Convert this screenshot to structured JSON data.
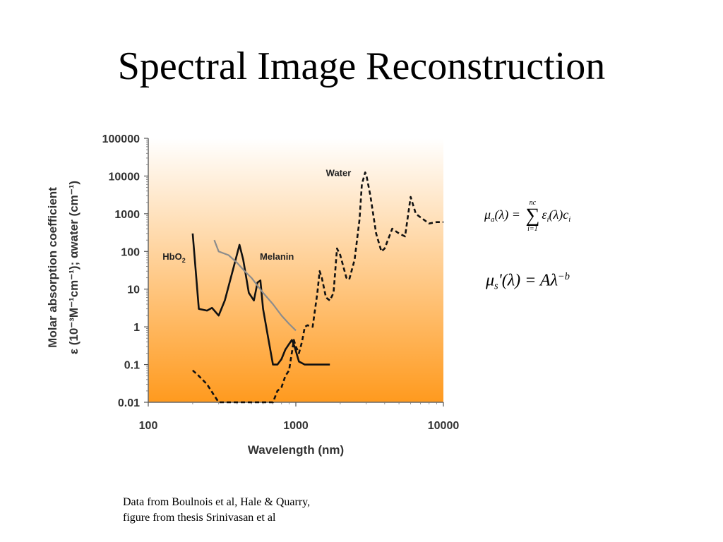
{
  "slide": {
    "title": "Spectral Image Reconstruction",
    "caption": [
      "Data from Boulnois et al, Hale & Quarry,",
      "figure from thesis Srinivasan et al"
    ]
  },
  "equations": {
    "mu_a": {
      "lhs": "μ",
      "lhs_sub": "a",
      "arg": "(λ) = ",
      "sum_top": "nc",
      "sum_sym": "∑",
      "sum_bottom": "i=1",
      "term": "ε",
      "term_sub": "i",
      "term_arg": "(λ)c",
      "term_end_sub": "i"
    },
    "mu_s": {
      "lhs": "μ",
      "lhs_sub": "s",
      "arg": "'(λ) = Aλ",
      "exp": "−b"
    }
  },
  "chart_data": {
    "type": "line",
    "xscale": "log",
    "yscale": "log",
    "xlim": [
      100,
      10000
    ],
    "ylim": [
      0.01,
      100000
    ],
    "xlabel": "Wavelength (nm)",
    "ylabel_line1": "Molar absorption coefficient",
    "ylabel_line2": "ε (10⁻³M⁻¹cm⁻¹); αwater (cm⁻¹)",
    "x_ticks": [
      100,
      1000,
      10000
    ],
    "x_tick_labels": [
      "100",
      "1000",
      "10000"
    ],
    "y_ticks": [
      0.01,
      0.1,
      1,
      10,
      100,
      1000,
      10000,
      100000
    ],
    "y_tick_labels": [
      "0.01",
      "0.1",
      "1",
      "10",
      "100",
      "1000",
      "10000",
      "100000"
    ],
    "background_gradient": {
      "top": "#ffffff",
      "bottom": "#ff9a1e"
    },
    "series": [
      {
        "name": "HbO₂",
        "style": "solid",
        "color": "#111111",
        "points": [
          [
            200,
            300
          ],
          [
            220,
            3
          ],
          [
            250,
            2.7
          ],
          [
            270,
            3.2
          ],
          [
            300,
            2
          ],
          [
            330,
            5
          ],
          [
            380,
            40
          ],
          [
            415,
            150
          ],
          [
            440,
            60
          ],
          [
            480,
            8
          ],
          [
            520,
            5
          ],
          [
            550,
            15
          ],
          [
            575,
            17
          ],
          [
            600,
            3
          ],
          [
            650,
            0.5
          ],
          [
            700,
            0.1
          ],
          [
            750,
            0.1
          ],
          [
            800,
            0.14
          ],
          [
            850,
            0.25
          ],
          [
            900,
            0.35
          ],
          [
            940,
            0.45
          ],
          [
            980,
            0.3
          ],
          [
            1050,
            0.12
          ],
          [
            1150,
            0.1
          ],
          [
            1350,
            0.1
          ],
          [
            1700,
            0.1
          ]
        ]
      },
      {
        "name": "Melanin",
        "style": "solid",
        "color": "#8c8c8c",
        "points": [
          [
            280,
            200
          ],
          [
            300,
            100
          ],
          [
            350,
            80
          ],
          [
            400,
            50
          ],
          [
            450,
            30
          ],
          [
            500,
            20
          ],
          [
            600,
            8
          ],
          [
            700,
            4
          ],
          [
            800,
            2
          ],
          [
            900,
            1.2
          ],
          [
            1000,
            0.8
          ]
        ]
      },
      {
        "name": "Water",
        "style": "dashed",
        "color": "#111111",
        "points": [
          [
            200,
            0.07
          ],
          [
            220,
            0.05
          ],
          [
            250,
            0.03
          ],
          [
            280,
            0.015
          ],
          [
            300,
            0.01
          ],
          [
            700,
            0.01
          ],
          [
            750,
            0.02
          ],
          [
            800,
            0.025
          ],
          [
            850,
            0.05
          ],
          [
            900,
            0.07
          ],
          [
            970,
            0.45
          ],
          [
            1000,
            0.3
          ],
          [
            1050,
            0.2
          ],
          [
            1100,
            0.4
          ],
          [
            1150,
            1
          ],
          [
            1200,
            1.1
          ],
          [
            1300,
            1
          ],
          [
            1400,
            8
          ],
          [
            1450,
            30
          ],
          [
            1500,
            20
          ],
          [
            1600,
            6
          ],
          [
            1700,
            5
          ],
          [
            1800,
            8
          ],
          [
            1900,
            120
          ],
          [
            2000,
            80
          ],
          [
            2200,
            20
          ],
          [
            2300,
            18
          ],
          [
            2500,
            60
          ],
          [
            2700,
            700
          ],
          [
            2800,
            6000
          ],
          [
            2950,
            12500
          ],
          [
            3000,
            11000
          ],
          [
            3200,
            3000
          ],
          [
            3500,
            300
          ],
          [
            3800,
            100
          ],
          [
            4000,
            120
          ],
          [
            4500,
            400
          ],
          [
            5000,
            300
          ],
          [
            5500,
            250
          ],
          [
            6000,
            2800
          ],
          [
            6500,
            1000
          ],
          [
            7000,
            800
          ],
          [
            8000,
            550
          ],
          [
            9000,
            600
          ],
          [
            10000,
            600
          ]
        ]
      }
    ],
    "annotations": [
      {
        "text": "Water",
        "x": 1600,
        "y": 10000
      },
      {
        "text": "HbO",
        "sub": "2",
        "x": 125,
        "y": 60
      },
      {
        "text": "Melanin",
        "x": 570,
        "y": 60
      }
    ]
  }
}
